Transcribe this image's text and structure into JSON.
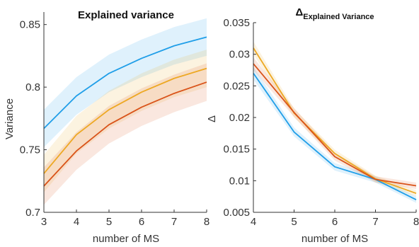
{
  "chart_data": [
    {
      "type": "line",
      "title": "Explained variance",
      "xlabel": "number of MS",
      "ylabel": "Variance",
      "xlim": [
        3,
        8
      ],
      "ylim": [
        0.7,
        0.86
      ],
      "xticks": [
        "3",
        "4",
        "5",
        "6",
        "7",
        "8"
      ],
      "yticks": [
        "0.7",
        "0.75",
        "0.8",
        "0.85"
      ],
      "x": [
        3,
        4,
        5,
        6,
        7,
        8
      ],
      "series": [
        {
          "color": "#1f9ee8",
          "values": [
            0.767,
            0.793,
            0.811,
            0.823,
            0.833,
            0.84
          ],
          "band_lower": [
            0.752,
            0.778,
            0.796,
            0.808,
            0.818,
            0.825
          ],
          "band_upper": [
            0.782,
            0.808,
            0.826,
            0.838,
            0.848,
            0.855
          ]
        },
        {
          "color": "#eda823",
          "values": [
            0.731,
            0.762,
            0.782,
            0.796,
            0.807,
            0.815
          ],
          "band_lower": [
            0.716,
            0.747,
            0.767,
            0.781,
            0.792,
            0.8
          ],
          "band_upper": [
            0.746,
            0.777,
            0.797,
            0.811,
            0.822,
            0.83
          ]
        },
        {
          "color": "#d95319",
          "values": [
            0.721,
            0.749,
            0.77,
            0.784,
            0.795,
            0.804
          ],
          "band_lower": [
            0.706,
            0.734,
            0.755,
            0.769,
            0.78,
            0.789
          ],
          "band_upper": [
            0.736,
            0.764,
            0.785,
            0.799,
            0.81,
            0.819
          ]
        }
      ]
    },
    {
      "type": "line",
      "title_main": "Δ",
      "title_sub": "Explained Variance",
      "xlabel": "number of MS",
      "ylabel": "Δ",
      "xlim": [
        4,
        8
      ],
      "ylim": [
        0.005,
        0.035
      ],
      "xticks": [
        "4",
        "5",
        "6",
        "7",
        "8"
      ],
      "yticks": [
        "0.005",
        "0.01",
        "0.015",
        "0.02",
        "0.025",
        "0.03",
        "0.035"
      ],
      "x": [
        4,
        5,
        6,
        7,
        8
      ],
      "series": [
        {
          "color": "#1f9ee8",
          "values": [
            0.027,
            0.0177,
            0.0122,
            0.0102,
            0.007
          ],
          "band_lower": [
            0.026,
            0.017,
            0.0116,
            0.0097,
            0.0065
          ],
          "band_upper": [
            0.028,
            0.0184,
            0.0128,
            0.0107,
            0.0075
          ]
        },
        {
          "color": "#eda823",
          "values": [
            0.031,
            0.0207,
            0.0143,
            0.0103,
            0.008
          ],
          "band_lower": [
            0.03,
            0.02,
            0.0137,
            0.0098,
            0.0075
          ],
          "band_upper": [
            0.032,
            0.0214,
            0.0149,
            0.0108,
            0.0085
          ]
        },
        {
          "color": "#d95319",
          "values": [
            0.0285,
            0.0208,
            0.0138,
            0.0102,
            0.0092
          ],
          "band_lower": [
            0.0275,
            0.0201,
            0.0132,
            0.0097,
            0.0087
          ],
          "band_upper": [
            0.0295,
            0.0215,
            0.0144,
            0.0107,
            0.0097
          ]
        }
      ]
    }
  ]
}
